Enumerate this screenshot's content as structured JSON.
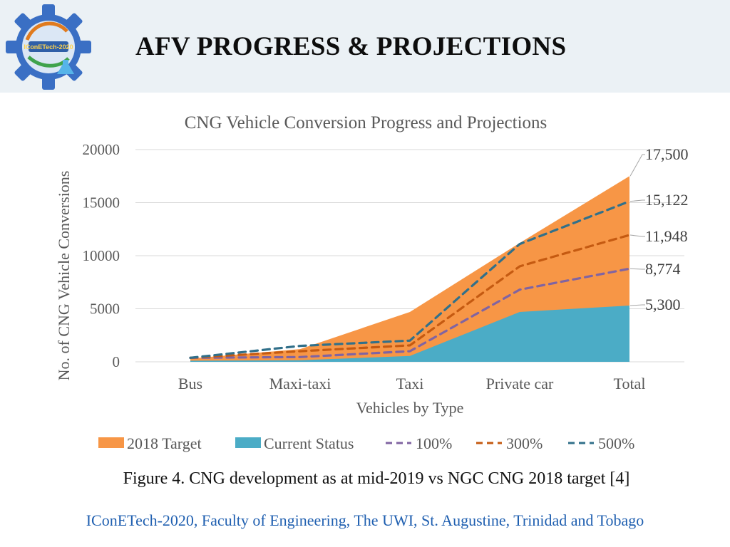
{
  "slide": {
    "title": "AFV PROGRESS & PROJECTIONS",
    "logo_text": "IConETech-2020",
    "caption": "Figure 4. CNG development as at mid-2019 vs NGC CNG 2018 target [4]",
    "footer": "IConETech-2020, Faculty of Engineering, The UWI, St. Augustine, Trinidad and Tobago"
  },
  "colors": {
    "header_band": "#ebf1f5",
    "footer_text": "#1f5fb0",
    "target_area": "#f79646",
    "current_area": "#4bacc6",
    "line_100": "#8064a2",
    "line_300": "#c55a11",
    "line_500": "#31708a",
    "grid": "#d9d9d9",
    "text": "#595959"
  },
  "chart_data": {
    "type": "area",
    "title": "CNG Vehicle Conversion Progress and Projections",
    "xlabel": "Vehicles by Type",
    "ylabel": "No. of CNG Vehicle Conversions",
    "categories": [
      "Bus",
      "Maxi-taxi",
      "Taxi",
      "Private car",
      "Total"
    ],
    "ylim": [
      0,
      20000
    ],
    "yticks": [
      "0",
      "5000",
      "10000",
      "15000",
      "20000"
    ],
    "grid": true,
    "legend_position": "bottom",
    "series": [
      {
        "name": "2018 Target",
        "kind": "area",
        "color": "#f79646",
        "values": [
          300,
          1200,
          4700,
          11200,
          17500
        ]
      },
      {
        "name": "Current Status",
        "kind": "area",
        "color": "#4bacc6",
        "values": [
          100,
          150,
          550,
          4700,
          5300
        ]
      },
      {
        "name": "100%",
        "kind": "dashed-line",
        "color": "#8064a2",
        "values": [
          380,
          450,
          1000,
          6800,
          8774
        ]
      },
      {
        "name": "300%",
        "kind": "dashed-line",
        "color": "#c55a11",
        "values": [
          380,
          1000,
          1550,
          9000,
          11948
        ]
      },
      {
        "name": "500%",
        "kind": "dashed-line",
        "color": "#31708a",
        "values": [
          380,
          1500,
          2000,
          11100,
          15122
        ]
      }
    ],
    "end_labels": [
      {
        "series": "2018 Target",
        "text": "17,500"
      },
      {
        "series": "500%",
        "text": "15,122"
      },
      {
        "series": "300%",
        "text": "11,948"
      },
      {
        "series": "100%",
        "text": "8,774"
      },
      {
        "series": "Current Status",
        "text": "5,300"
      }
    ]
  }
}
